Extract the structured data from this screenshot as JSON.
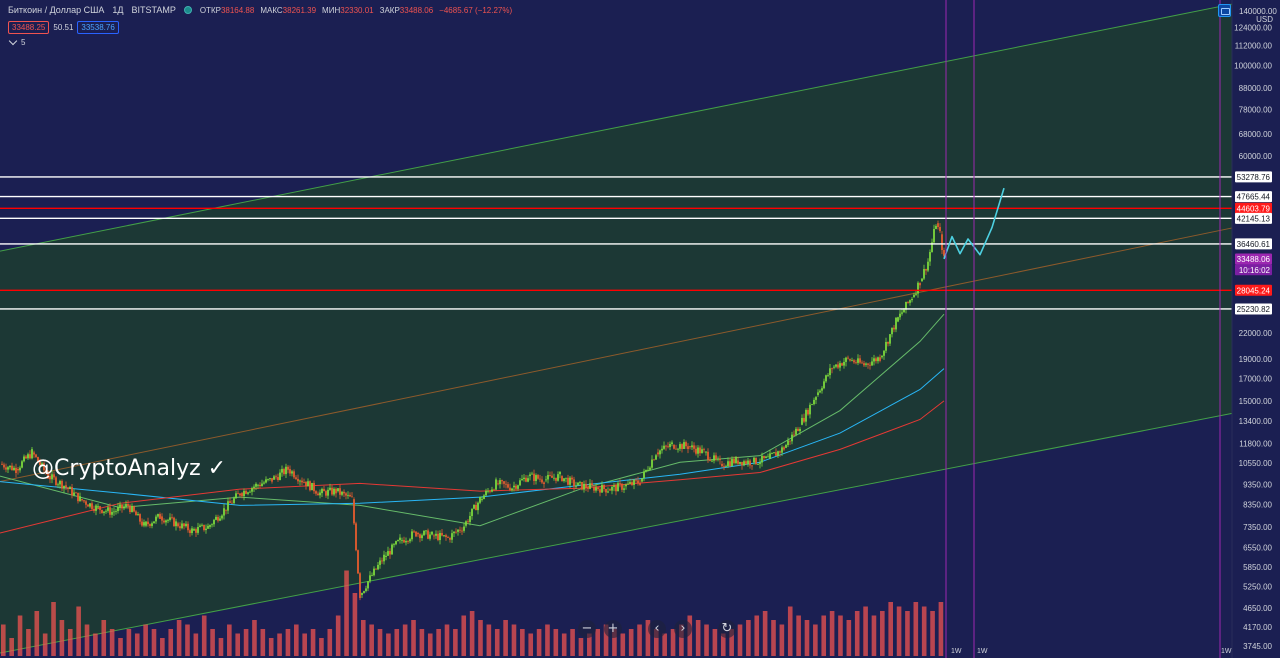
{
  "header": {
    "symbol": "Биткоин / Доллар США",
    "timeframe": "1Д",
    "exchange": "BITSTAMP",
    "ohlc": [
      {
        "key": "ОТКР",
        "value": "38164.88"
      },
      {
        "key": "МАКС",
        "value": "38261.39"
      },
      {
        "key": "МИН",
        "value": "32330.01"
      },
      {
        "key": "ЗАКР",
        "value": "33488.06"
      },
      {
        "key": "",
        "value": "−4685.67 (−12.27%)"
      }
    ]
  },
  "quote": {
    "sell": "33488.25",
    "spread": "50.51",
    "buy": "33538.76",
    "collapsed_count": "5"
  },
  "watermark": "@CryptoAnalyz ✓",
  "axis": {
    "currency": "USD",
    "top_tick": "140000.00"
  },
  "bottom_labels": [
    "1W",
    "1W",
    "1W"
  ],
  "nav": {
    "minus": "−",
    "plus": "+",
    "left": "‹",
    "right": "›",
    "reset": "↻"
  },
  "colors": {
    "background": "#1b1f52",
    "channel_fill": "#1c3a34",
    "candle_up": "#7cd83c",
    "candle_down": "#e65c2e",
    "volume": "#ef5350",
    "level_white": "#ffffff",
    "level_red": "#ff0000",
    "forecast": "#4dd0e1",
    "vertical_marker": "#9c27b0",
    "ma_green": "#66bb6a",
    "ma_blue": "#29b6f6",
    "ma_red": "#e53935"
  },
  "chart_data": {
    "type": "candlestick",
    "y_scale": "log",
    "ylim": [
      3500,
      145000
    ],
    "y_ticks": [
      "140000.00",
      "124000.00",
      "112000.00",
      "100000.00",
      "88000.00",
      "78000.00",
      "68000.00",
      "60000.00",
      "53278.76",
      "47665.44",
      "44603.79",
      "42145.13",
      "36460.61",
      "33488.06",
      "28045.24",
      "25230.82",
      "22000.00",
      "19000.00",
      "17000.00",
      "15000.00",
      "13400.00",
      "11800.00",
      "10550.00",
      "9350.00",
      "8350.00",
      "7350.00",
      "6550.00",
      "5850.00",
      "5250.00",
      "4650.00",
      "4170.00",
      "3745.00"
    ],
    "y_tick_values": [
      140000,
      124000,
      112000,
      100000,
      88000,
      78000,
      68000,
      60000,
      53278.76,
      47665.44,
      44603.79,
      42145.13,
      36460.61,
      33488.06,
      28045.24,
      25230.82,
      22000,
      19000,
      17000,
      15000,
      13400,
      11800,
      10550,
      9350,
      8350,
      7350,
      6550,
      5850,
      5250,
      4650,
      4170,
      3745
    ],
    "price_badges": [
      {
        "label": "53278.76",
        "value": 53278.76,
        "style": "white"
      },
      {
        "label": "47665.44",
        "value": 47665.44,
        "style": "white"
      },
      {
        "label": "44603.79",
        "value": 44603.79,
        "style": "red"
      },
      {
        "label": "42145.13",
        "value": 42145.13,
        "style": "white"
      },
      {
        "label": "36460.61",
        "value": 36460.61,
        "style": "white"
      },
      {
        "label": "33488.06",
        "value": 33488.06,
        "style": "purple"
      },
      {
        "label": "10:16:02",
        "value": 31500,
        "style": "purple-dark"
      },
      {
        "label": "28045.24",
        "value": 28045.24,
        "style": "red"
      },
      {
        "label": "25230.82",
        "value": 25230.82,
        "style": "white"
      }
    ],
    "horizontal_levels": [
      {
        "value": 53278.76,
        "color": "white"
      },
      {
        "value": 47665.44,
        "color": "white"
      },
      {
        "value": 44603.79,
        "color": "red"
      },
      {
        "value": 42145.13,
        "color": "white"
      },
      {
        "value": 36460.61,
        "color": "white"
      },
      {
        "value": 28045.24,
        "color": "red"
      },
      {
        "value": 25230.82,
        "color": "white"
      }
    ],
    "price_path": [
      [
        0,
        10500
      ],
      [
        8,
        10200
      ],
      [
        16,
        11200
      ],
      [
        24,
        9800
      ],
      [
        32,
        9300
      ],
      [
        40,
        8600
      ],
      [
        48,
        8200
      ],
      [
        56,
        8000
      ],
      [
        64,
        8300
      ],
      [
        72,
        7400
      ],
      [
        80,
        7800
      ],
      [
        88,
        7500
      ],
      [
        96,
        7200
      ],
      [
        104,
        7350
      ],
      [
        112,
        8100
      ],
      [
        120,
        8900
      ],
      [
        128,
        9300
      ],
      [
        136,
        9600
      ],
      [
        144,
        10200
      ],
      [
        152,
        9500
      ],
      [
        160,
        8900
      ],
      [
        168,
        9000
      ],
      [
        176,
        8600
      ],
      [
        180,
        5000
      ],
      [
        184,
        5400
      ],
      [
        192,
        6200
      ],
      [
        200,
        6800
      ],
      [
        208,
        7100
      ],
      [
        216,
        7000
      ],
      [
        224,
        6900
      ],
      [
        232,
        7400
      ],
      [
        240,
        8600
      ],
      [
        248,
        9400
      ],
      [
        256,
        9200
      ],
      [
        264,
        9800
      ],
      [
        272,
        9600
      ],
      [
        280,
        9800
      ],
      [
        288,
        9300
      ],
      [
        296,
        9200
      ],
      [
        304,
        9100
      ],
      [
        312,
        9250
      ],
      [
        320,
        9500
      ],
      [
        328,
        11200
      ],
      [
        336,
        11700
      ],
      [
        344,
        11600
      ],
      [
        352,
        11200
      ],
      [
        360,
        10500
      ],
      [
        368,
        10700
      ],
      [
        376,
        10600
      ],
      [
        384,
        10800
      ],
      [
        392,
        11500
      ],
      [
        400,
        13100
      ],
      [
        408,
        15500
      ],
      [
        416,
        18100
      ],
      [
        424,
        19000
      ],
      [
        432,
        18400
      ],
      [
        440,
        19200
      ],
      [
        448,
        23500
      ],
      [
        456,
        27000
      ],
      [
        460,
        29500
      ],
      [
        464,
        33000
      ],
      [
        468,
        41000
      ],
      [
        470,
        38500
      ],
      [
        472,
        33488
      ]
    ],
    "forecast_path": [
      [
        472,
        33488
      ],
      [
        476,
        38000
      ],
      [
        480,
        34500
      ],
      [
        484,
        37500
      ],
      [
        490,
        34300
      ],
      [
        496,
        40000
      ],
      [
        502,
        50000
      ]
    ],
    "vertical_markers": [
      472,
      486,
      609
    ],
    "moving_averages": [
      {
        "color": "green",
        "points": [
          [
            0,
            9800
          ],
          [
            60,
            8200
          ],
          [
            120,
            8700
          ],
          [
            180,
            8300
          ],
          [
            240,
            7400
          ],
          [
            290,
            9100
          ],
          [
            340,
            10600
          ],
          [
            380,
            11000
          ],
          [
            420,
            14200
          ],
          [
            460,
            21000
          ],
          [
            472,
            24500
          ]
        ]
      },
      {
        "color": "blue",
        "points": [
          [
            0,
            9500
          ],
          [
            60,
            8900
          ],
          [
            120,
            8300
          ],
          [
            180,
            8400
          ],
          [
            240,
            8700
          ],
          [
            290,
            9300
          ],
          [
            340,
            9900
          ],
          [
            380,
            10600
          ],
          [
            420,
            12500
          ],
          [
            460,
            16000
          ],
          [
            472,
            18000
          ]
        ]
      },
      {
        "color": "red",
        "points": [
          [
            0,
            7100
          ],
          [
            60,
            8400
          ],
          [
            120,
            9100
          ],
          [
            180,
            9400
          ],
          [
            240,
            9000
          ],
          [
            290,
            9150
          ],
          [
            340,
            9600
          ],
          [
            380,
            10000
          ],
          [
            420,
            11400
          ],
          [
            460,
            13500
          ],
          [
            472,
            15000
          ]
        ]
      }
    ],
    "channel": {
      "upper": [
        [
          0,
          35000
        ],
        [
          617,
          142000
        ]
      ],
      "middle": [
        [
          0,
          9500
        ],
        [
          617,
          40000
        ]
      ],
      "lower": [
        [
          0,
          3600
        ],
        [
          617,
          14000
        ]
      ]
    },
    "volume_bars": [
      0.35,
      0.2,
      0.45,
      0.3,
      0.5,
      0.25,
      0.6,
      0.4,
      0.3,
      0.55,
      0.35,
      0.25,
      0.4,
      0.3,
      0.2,
      0.3,
      0.25,
      0.35,
      0.3,
      0.2,
      0.3,
      0.4,
      0.35,
      0.25,
      0.45,
      0.3,
      0.2,
      0.35,
      0.25,
      0.3,
      0.4,
      0.3,
      0.2,
      0.25,
      0.3,
      0.35,
      0.25,
      0.3,
      0.2,
      0.3,
      0.45,
      0.95,
      0.7,
      0.4,
      0.35,
      0.3,
      0.25,
      0.3,
      0.35,
      0.4,
      0.3,
      0.25,
      0.3,
      0.35,
      0.3,
      0.45,
      0.5,
      0.4,
      0.35,
      0.3,
      0.4,
      0.35,
      0.3,
      0.25,
      0.3,
      0.35,
      0.3,
      0.25,
      0.3,
      0.2,
      0.25,
      0.3,
      0.35,
      0.3,
      0.25,
      0.3,
      0.35,
      0.4,
      0.3,
      0.25,
      0.3,
      0.35,
      0.45,
      0.4,
      0.35,
      0.3,
      0.25,
      0.3,
      0.35,
      0.4,
      0.45,
      0.5,
      0.4,
      0.35,
      0.55,
      0.45,
      0.4,
      0.35,
      0.45,
      0.5,
      0.45,
      0.4,
      0.5,
      0.55,
      0.45,
      0.5,
      0.6,
      0.55,
      0.5,
      0.6,
      0.55,
      0.5,
      0.6
    ]
  }
}
